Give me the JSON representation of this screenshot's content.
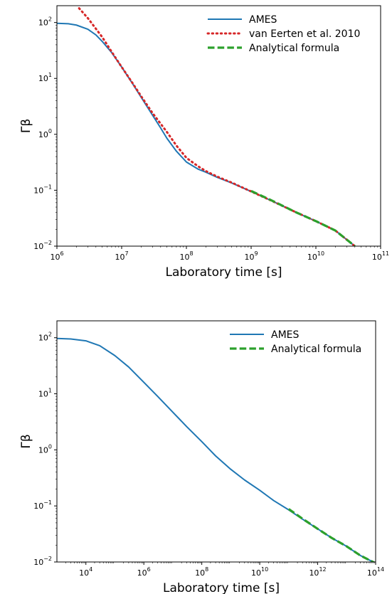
{
  "colors": {
    "ames": "#1f77b4",
    "van_eerten": "#d62728",
    "analytical": "#2ca02c",
    "axes": "#000000"
  },
  "chart_data": [
    {
      "type": "line",
      "xlabel": "Laboratory time [s]",
      "ylabel": "Γβ",
      "xscale": "log",
      "yscale": "log",
      "xlim": [
        1000000.0,
        100000000000.0
      ],
      "ylim": [
        0.01,
        200
      ],
      "grid": false,
      "legend_position": "top-right",
      "xticks": [
        {
          "value": 1000000.0,
          "base": "10",
          "exp": "6"
        },
        {
          "value": 10000000.0,
          "base": "10",
          "exp": "7"
        },
        {
          "value": 100000000.0,
          "base": "10",
          "exp": "8"
        },
        {
          "value": 1000000000.0,
          "base": "10",
          "exp": "9"
        },
        {
          "value": 10000000000.0,
          "base": "10",
          "exp": "10"
        },
        {
          "value": 100000000000.0,
          "base": "10",
          "exp": "11"
        }
      ],
      "yticks": [
        {
          "value": 0.01,
          "base": "10",
          "exp": "−2"
        },
        {
          "value": 0.1,
          "base": "10",
          "exp": "−1"
        },
        {
          "value": 1,
          "base": "10",
          "exp": "0"
        },
        {
          "value": 10,
          "base": "10",
          "exp": "1"
        },
        {
          "value": 100,
          "base": "10",
          "exp": "2"
        }
      ],
      "series": [
        {
          "name": "AMES",
          "style": "solid",
          "color": "#1f77b4",
          "x": [
            1000000.0,
            1500000.0,
            2000000.0,
            3000000.0,
            4000000.0,
            5000000.0,
            7000000.0,
            10000000.0,
            15000000.0,
            20000000.0,
            30000000.0,
            40000000.0,
            50000000.0,
            70000000.0,
            100000000.0,
            150000000.0,
            200000000.0,
            300000000.0,
            500000000.0,
            1000000000.0,
            2000000000.0,
            5000000000.0,
            10000000000.0,
            20000000000.0,
            40000000000.0
          ],
          "y": [
            97,
            95,
            90,
            76,
            60,
            46,
            29,
            16,
            7.8,
            4.6,
            2.2,
            1.3,
            0.85,
            0.5,
            0.32,
            0.24,
            0.21,
            0.17,
            0.135,
            0.095,
            0.066,
            0.04,
            0.028,
            0.019,
            0.01
          ]
        },
        {
          "name": "van Eerten et al. 2010",
          "style": "dotted",
          "color": "#d62728",
          "x": [
            2200000.0,
            3000000.0,
            5000000.0,
            7000000.0,
            10000000.0,
            15000000.0,
            20000000.0,
            30000000.0,
            50000000.0,
            70000000.0,
            100000000.0,
            150000000.0,
            200000000.0,
            300000000.0,
            500000000.0,
            1000000000.0,
            2000000000.0,
            5000000000.0,
            10000000000.0,
            20000000000.0,
            40000000000.0
          ],
          "y": [
            180,
            120,
            55,
            30,
            16,
            8,
            4.8,
            2.4,
            1.1,
            0.63,
            0.38,
            0.27,
            0.22,
            0.175,
            0.137,
            0.095,
            0.066,
            0.04,
            0.028,
            0.019,
            0.01
          ]
        },
        {
          "name": "Analytical formula",
          "style": "dashed",
          "color": "#2ca02c",
          "x": [
            1000000000.0,
            2000000000.0,
            5000000000.0,
            10000000000.0,
            20000000000.0,
            40000000000.0
          ],
          "y": [
            0.097,
            0.067,
            0.04,
            0.028,
            0.019,
            0.01
          ]
        }
      ]
    },
    {
      "type": "line",
      "xlabel": "Laboratory time [s]",
      "ylabel": "Γβ",
      "xscale": "log",
      "yscale": "log",
      "xlim": [
        1000.0,
        100000000000000.0
      ],
      "ylim": [
        0.01,
        200
      ],
      "grid": false,
      "legend_position": "top-right",
      "xticks": [
        {
          "value": 10000.0,
          "base": "10",
          "exp": "4"
        },
        {
          "value": 1000000.0,
          "base": "10",
          "exp": "6"
        },
        {
          "value": 100000000.0,
          "base": "10",
          "exp": "8"
        },
        {
          "value": 10000000000.0,
          "base": "10",
          "exp": "10"
        },
        {
          "value": 1000000000000.0,
          "base": "10",
          "exp": "12"
        },
        {
          "value": 100000000000000.0,
          "base": "10",
          "exp": "14"
        }
      ],
      "yticks": [
        {
          "value": 0.01,
          "base": "10",
          "exp": "−2"
        },
        {
          "value": 0.1,
          "base": "10",
          "exp": "−1"
        },
        {
          "value": 1,
          "base": "10",
          "exp": "0"
        },
        {
          "value": 10,
          "base": "10",
          "exp": "1"
        },
        {
          "value": 100,
          "base": "10",
          "exp": "2"
        }
      ],
      "series": [
        {
          "name": "AMES",
          "style": "solid",
          "color": "#1f77b4",
          "x": [
            1000.0,
            3000.0,
            10000.0,
            30000.0,
            100000.0,
            300000.0,
            1000000.0,
            3000000.0,
            10000000.0,
            30000000.0,
            100000000.0,
            300000000.0,
            1000000000.0,
            3000000000.0,
            10000000000.0,
            30000000000.0,
            100000000000.0,
            300000000000.0,
            1000000000000.0,
            3000000000000.0,
            10000000000000.0,
            30000000000000.0,
            100000000000000.0
          ],
          "y": [
            97,
            95,
            88,
            72,
            48,
            30,
            16,
            9,
            4.7,
            2.6,
            1.4,
            0.78,
            0.45,
            0.29,
            0.19,
            0.125,
            0.085,
            0.058,
            0.039,
            0.027,
            0.019,
            0.013,
            0.0095
          ]
        },
        {
          "name": "Analytical formula",
          "style": "dashed",
          "color": "#2ca02c",
          "x": [
            100000000000.0,
            300000000000.0,
            1000000000000.0,
            3000000000000.0,
            10000000000000.0,
            30000000000000.0,
            100000000000000.0
          ],
          "y": [
            0.088,
            0.059,
            0.039,
            0.027,
            0.019,
            0.013,
            0.0095
          ]
        }
      ]
    }
  ]
}
